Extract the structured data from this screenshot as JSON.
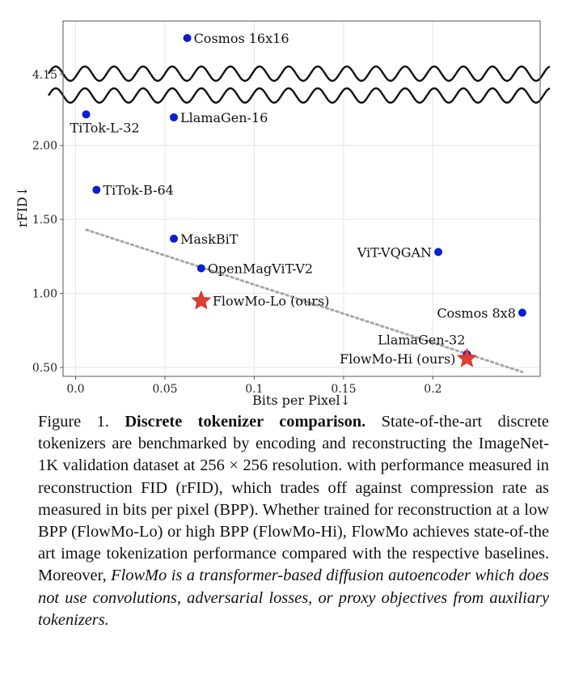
{
  "chart_data": {
    "type": "scatter",
    "xlabel": "Bits per Pixel↓",
    "ylabel": "rFID↓",
    "xlim": [
      -0.007,
      0.26
    ],
    "ylim_lower": [
      0.44,
      2.25
    ],
    "ylim_upper": [
      4.0,
      4.75
    ],
    "axis_break": true,
    "grid": true,
    "x_ticks": [
      0,
      0.05,
      0.1,
      0.15,
      0.2
    ],
    "x_tick_labels": [
      "0.0",
      "0.05",
      "0.1",
      "0.15",
      "0.2"
    ],
    "y_ticks": [
      0.5,
      1.0,
      1.5,
      2.0,
      4.15
    ],
    "y_tick_labels": [
      "0.50",
      "1.00",
      "1.50",
      "2.00",
      "4.15"
    ],
    "trend_line": {
      "x": [
        0.006,
        0.25
      ],
      "y": [
        1.43,
        0.47
      ],
      "style": "dotted"
    },
    "series": [
      {
        "name": "baselines",
        "marker": "circle",
        "color": "#0a1fd0",
        "points": [
          {
            "label": "Cosmos 16x16",
            "x": 0.0625,
            "y": 4.6,
            "label_pos": "right"
          },
          {
            "label": "TiTok-L-32",
            "x": 0.0059,
            "y": 2.21,
            "label_pos": "below"
          },
          {
            "label": "LlamaGen-16",
            "x": 0.055,
            "y": 2.19,
            "label_pos": "right"
          },
          {
            "label": "TiTok-B-64",
            "x": 0.0117,
            "y": 1.7,
            "label_pos": "right"
          },
          {
            "label": "MaskBiT",
            "x": 0.055,
            "y": 1.37,
            "label_pos": "right"
          },
          {
            "label": "ViT-VQGAN",
            "x": 0.203,
            "y": 1.28,
            "label_pos": "left"
          },
          {
            "label": "OpenMagViT-V2",
            "x": 0.0703,
            "y": 1.17,
            "label_pos": "right"
          },
          {
            "label": "Cosmos 8x8",
            "x": 0.25,
            "y": 0.87,
            "label_pos": "left"
          },
          {
            "label": "LlamaGen-32",
            "x": 0.219,
            "y": 0.59,
            "label_pos": "left-above"
          }
        ]
      },
      {
        "name": "ours",
        "marker": "star",
        "color": "#e23d32",
        "points": [
          {
            "label": "FlowMo-Lo (ours)",
            "x": 0.0703,
            "y": 0.95,
            "label_pos": "right"
          },
          {
            "label": "FlowMo-Hi (ours)",
            "x": 0.219,
            "y": 0.56,
            "label_pos": "left"
          }
        ]
      }
    ]
  },
  "caption": {
    "figure_label": "Figure 1.",
    "title": "Discrete tokenizer comparison.",
    "body": "State-of-the-art discrete tokenizers are benchmarked by encoding and reconstructing the ImageNet-1K validation dataset at 256 × 256 resolution. with performance measured in reconstruction FID (rFID), which trades off against compression rate as measured in bits per pixel (BPP). Whether trained for reconstruction at a low BPP (FlowMo-Lo) or high BPP (FlowMo-Hi), FlowMo achieves state-of-the art image tokenization performance compared with the respective baselines. Moreover,",
    "italic": "FlowMo is a transformer-based diffusion autoencoder which does not use convolutions, adversarial losses, or proxy objectives from auxiliary tokenizers."
  }
}
